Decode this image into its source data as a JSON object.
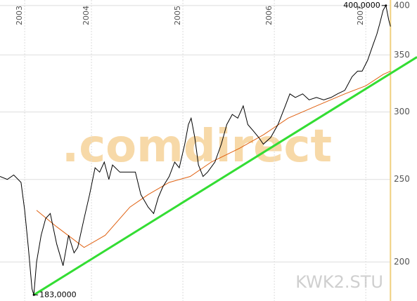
{
  "chart_data": {
    "type": "line",
    "watermark": ".comdirect",
    "symbol": "KWK2.STU",
    "log_scale": true,
    "grid": true,
    "xlim": [
      2003.0,
      2007.56
    ],
    "xticks": [
      {
        "value": 2003.27,
        "label": "2003"
      },
      2004,
      2005,
      2006,
      2007
    ],
    "ylim": [
      180,
      406
    ],
    "yticks": [
      200,
      250,
      300,
      350,
      400
    ],
    "series": [
      {
        "color": "#000000",
        "width": 1,
        "x": [
          2003.0,
          2003.08,
          2003.15,
          2003.23,
          2003.27,
          2003.31,
          2003.35,
          2003.37,
          2003.4,
          2003.45,
          2003.5,
          2003.55,
          2003.62,
          2003.69,
          2003.75,
          2003.81,
          2003.85,
          2003.92,
          2003.98,
          2004.04,
          2004.09,
          2004.14,
          2004.19,
          2004.23,
          2004.31,
          2004.38,
          2004.48,
          2004.54,
          2004.62,
          2004.68,
          2004.73,
          2004.78,
          2004.85,
          2004.91,
          2004.96,
          2005.02,
          2005.06,
          2005.09,
          2005.13,
          2005.17,
          2005.22,
          2005.27,
          2005.35,
          2005.42,
          2005.48,
          2005.54,
          2005.6,
          2005.66,
          2005.71,
          2005.77,
          2005.83,
          2005.88,
          2005.96,
          2006.04,
          2006.12,
          2006.17,
          2006.23,
          2006.31,
          2006.38,
          2006.46,
          2006.54,
          2006.62,
          2006.69,
          2006.77,
          2006.85,
          2006.91,
          2006.96,
          2007.02,
          2007.08,
          2007.12,
          2007.15,
          2007.19,
          2007.22,
          2007.25,
          2007.27
        ],
        "values": [
          252,
          250,
          253,
          248,
          230,
          208,
          186,
          183,
          200,
          215,
          225,
          228,
          210,
          198,
          215,
          205,
          208,
          225,
          240,
          258,
          255,
          262,
          250,
          260,
          255,
          255,
          255,
          240,
          232,
          228,
          238,
          245,
          252,
          262,
          258,
          275,
          290,
          295,
          280,
          260,
          252,
          255,
          262,
          275,
          290,
          298,
          295,
          305,
          290,
          285,
          280,
          275,
          280,
          290,
          305,
          315,
          312,
          315,
          310,
          312,
          310,
          312,
          315,
          318,
          330,
          335,
          335,
          345,
          360,
          370,
          380,
          395,
          400,
          385,
          378
        ]
      },
      {
        "color": "#e06010",
        "width": 1,
        "x": [
          2003.4,
          2003.62,
          2003.92,
          2004.15,
          2004.42,
          2004.62,
          2004.85,
          2005.08,
          2005.31,
          2005.62,
          2005.88,
          2006.15,
          2006.46,
          2006.77,
          2007.0,
          2007.19,
          2007.27
        ],
        "values": [
          230,
          220,
          208,
          215,
          232,
          240,
          248,
          252,
          262,
          272,
          282,
          295,
          305,
          315,
          322,
          332,
          335
        ]
      },
      {
        "color": "#33dd33",
        "width": 3,
        "x": [
          2003.37,
          2007.56
        ],
        "values": [
          183,
          348
        ]
      }
    ],
    "annotations": [
      {
        "text": "400,0000",
        "x": 2007.22,
        "y": 400
      },
      {
        "text": "183,0000",
        "x": 2003.37,
        "y": 183
      }
    ]
  }
}
